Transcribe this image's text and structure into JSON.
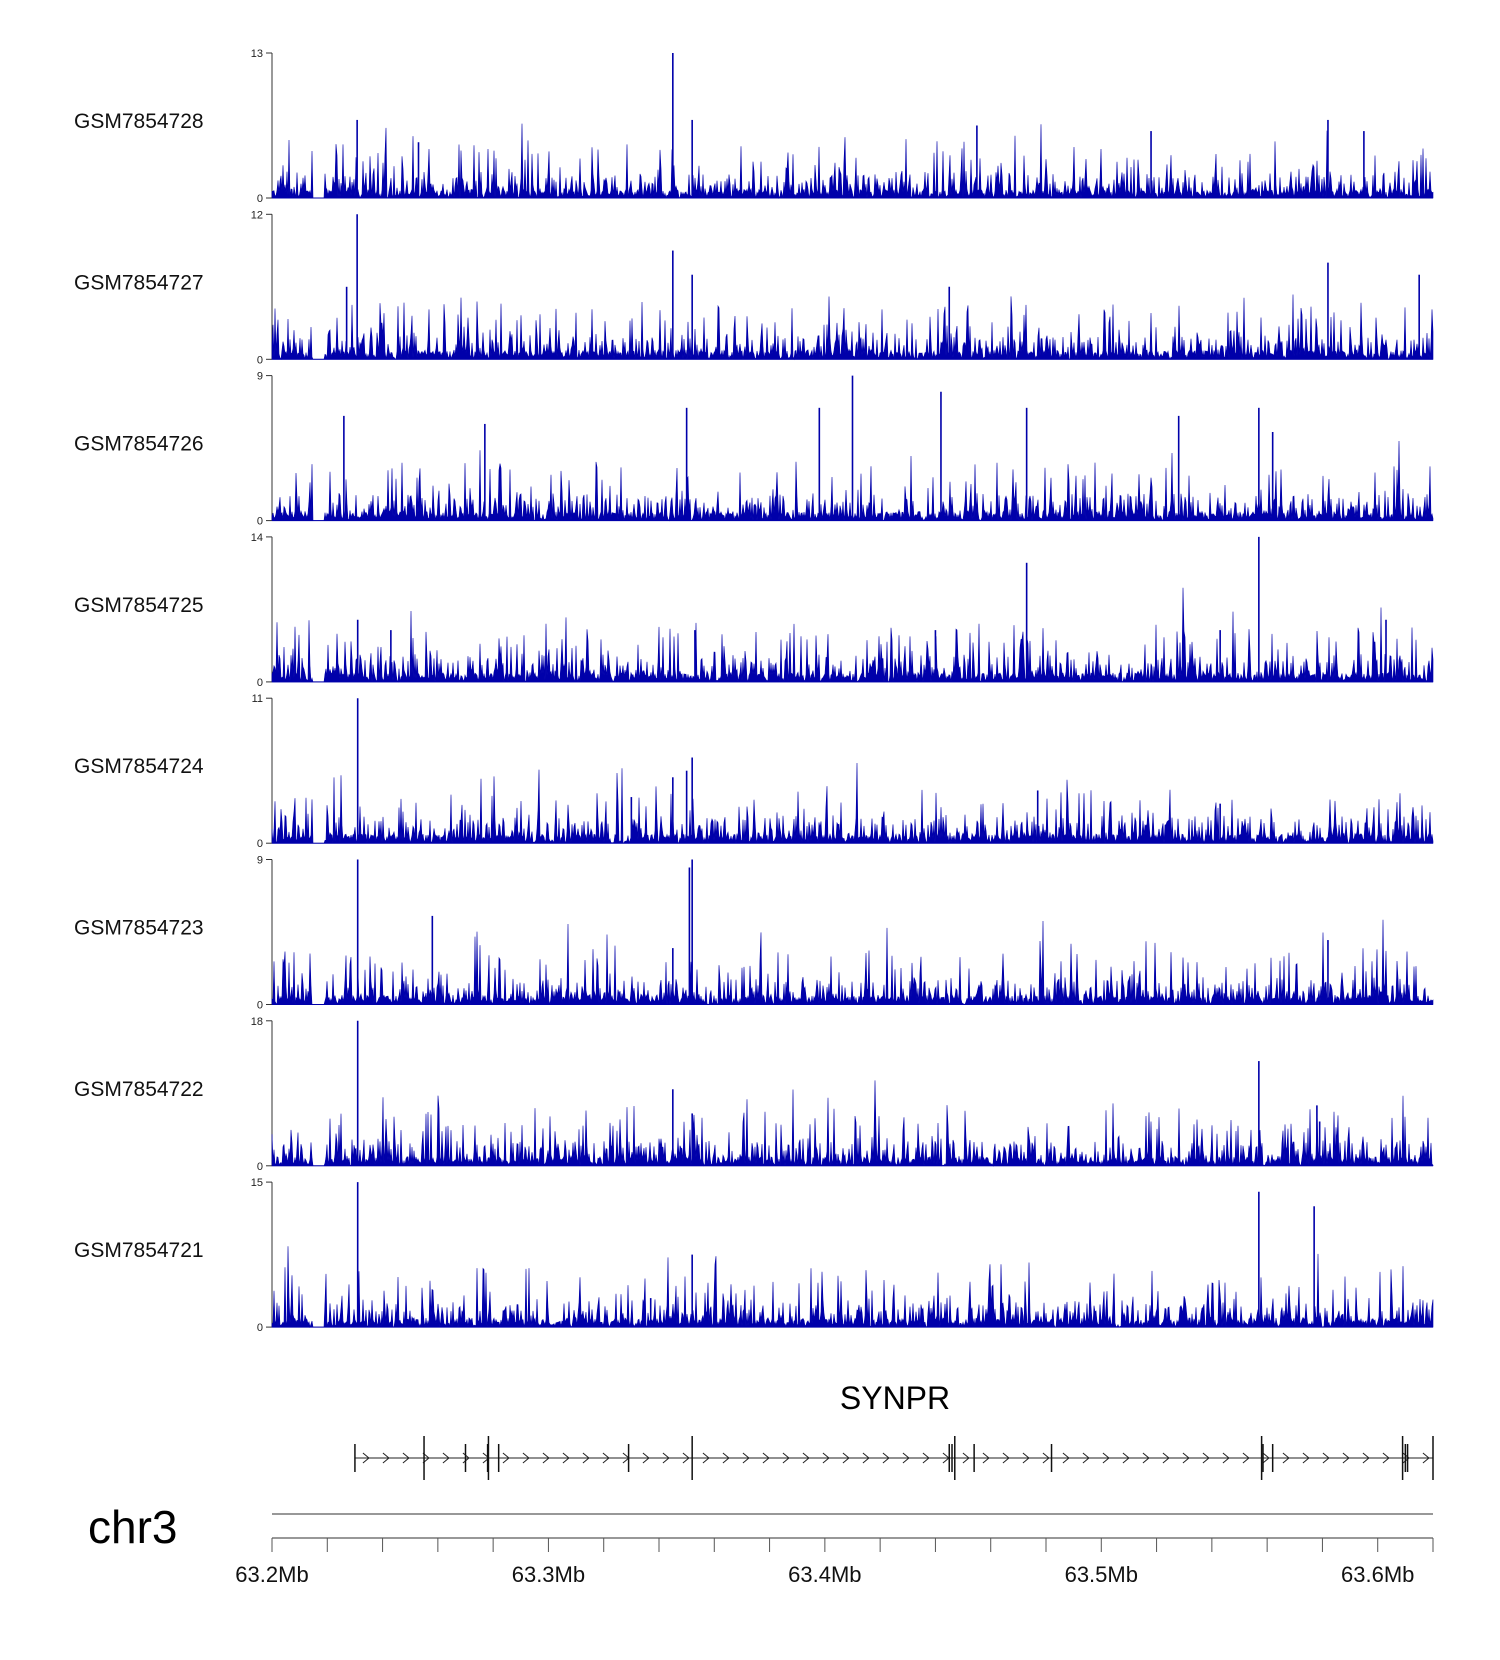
{
  "chart_data": {
    "type": "genome-browser-coverage",
    "chromosome": "chr3",
    "region": {
      "start": 63200000,
      "end": 63620000
    },
    "track_color": "#0000aa",
    "tracks": [
      {
        "name": "GSM7854728",
        "ymin": 0,
        "ymax": 13,
        "peaks": [
          [
            63230800,
            7
          ],
          [
            63253000,
            5
          ],
          [
            63345000,
            13
          ],
          [
            63352000,
            7
          ],
          [
            63455000,
            6.5
          ],
          [
            63518000,
            6
          ],
          [
            63582000,
            7
          ],
          [
            63595000,
            6
          ]
        ]
      },
      {
        "name": "GSM7854727",
        "ymin": 0,
        "ymax": 12,
        "peaks": [
          [
            63230800,
            12
          ],
          [
            63227000,
            6
          ],
          [
            63345000,
            9
          ],
          [
            63352000,
            7
          ],
          [
            63445000,
            6
          ],
          [
            63582000,
            8
          ],
          [
            63615000,
            7
          ]
        ]
      },
      {
        "name": "GSM7854726",
        "ymin": 0,
        "ymax": 9,
        "peaks": [
          [
            63226000,
            6.5
          ],
          [
            63277000,
            6
          ],
          [
            63350000,
            7
          ],
          [
            63398000,
            7
          ],
          [
            63410000,
            9
          ],
          [
            63442000,
            8
          ],
          [
            63473000,
            7
          ],
          [
            63528000,
            6.5
          ],
          [
            63557000,
            7
          ],
          [
            63562000,
            5.5
          ]
        ]
      },
      {
        "name": "GSM7854725",
        "ymin": 0,
        "ymax": 14,
        "peaks": [
          [
            63231000,
            6
          ],
          [
            63243000,
            5
          ],
          [
            63353000,
            5
          ],
          [
            63440000,
            5
          ],
          [
            63473000,
            11.5
          ],
          [
            63543000,
            5
          ],
          [
            63557000,
            14
          ],
          [
            63603000,
            6
          ]
        ]
      },
      {
        "name": "GSM7854724",
        "ymin": 0,
        "ymax": 11,
        "peaks": [
          [
            63231000,
            11
          ],
          [
            63345000,
            5
          ],
          [
            63350000,
            5.5
          ],
          [
            63352000,
            6.5
          ],
          [
            63330000,
            3.5
          ],
          [
            63477000,
            4
          ],
          [
            63543000,
            3
          ]
        ]
      },
      {
        "name": "GSM7854723",
        "ymin": 0,
        "ymax": 9,
        "peaks": [
          [
            63231000,
            9
          ],
          [
            63258000,
            5.5
          ],
          [
            63345000,
            3.5
          ],
          [
            63351000,
            8.5
          ],
          [
            63352000,
            9
          ],
          [
            63582000,
            4
          ]
        ]
      },
      {
        "name": "GSM7854722",
        "ymin": 0,
        "ymax": 18,
        "peaks": [
          [
            63231000,
            18
          ],
          [
            63345000,
            9.5
          ],
          [
            63352000,
            6.5
          ],
          [
            63557000,
            13
          ],
          [
            63578000,
            7.5
          ],
          [
            63579000,
            5.5
          ]
        ]
      },
      {
        "name": "GSM7854721",
        "ymin": 0,
        "ymax": 15,
        "peaks": [
          [
            63231000,
            15
          ],
          [
            63352000,
            7.5
          ],
          [
            63557000,
            14
          ],
          [
            63577000,
            12.5
          ],
          [
            63337000,
            3
          ]
        ]
      }
    ],
    "gene": {
      "name": "SYNPR",
      "strand": "+",
      "start": 63230000,
      "end": 63620000,
      "exons": [
        63230000,
        63255000,
        63270000,
        63278000,
        63278300,
        63282000,
        63329000,
        63352000,
        63445000,
        63446000,
        63447000,
        63454000,
        63482000,
        63558000,
        63558500,
        63562000,
        63609000,
        63610000,
        63610800,
        63620000
      ]
    },
    "x_axis": {
      "tick_labels": [
        "63.2Mb",
        "63.3Mb",
        "63.4Mb",
        "63.5Mb",
        "63.6Mb"
      ],
      "tick_values": [
        63200000,
        63300000,
        63400000,
        63500000,
        63600000
      ],
      "minor_step": 20000
    }
  }
}
